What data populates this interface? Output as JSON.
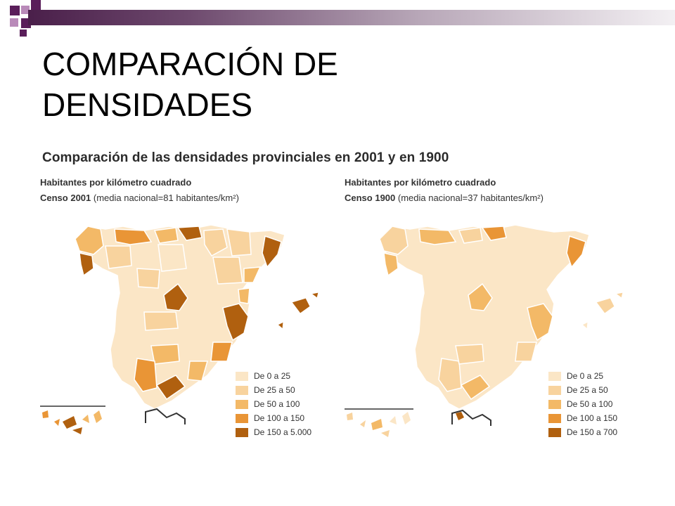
{
  "slide": {
    "title_line1": "COMPARACIÓN DE",
    "title_line2": "DENSIDADES"
  },
  "figure": {
    "title": "Comparación de las densidades provinciales en 2001 y en 1900"
  },
  "maps": [
    {
      "id": "2001",
      "subtitle": "Habitantes por kilómetro cuadrado",
      "census_bold": "Censo 2001",
      "census_rest": " (media nacional=81 habitantes/km²)",
      "legend": [
        {
          "label": "De 0 a 25",
          "color": "#fbe6c6"
        },
        {
          "label": "De 25 a 50",
          "color": "#f8d39e"
        },
        {
          "label": "De 50 a 100",
          "color": "#f3b967"
        },
        {
          "label": "De 100 a 150",
          "color": "#e99536"
        },
        {
          "label": "De 150 a 5.000",
          "color": "#b0600f"
        }
      ]
    },
    {
      "id": "1900",
      "subtitle": "Habitantes por kilómetro cuadrado",
      "census_bold": "Censo 1900",
      "census_rest": " (media nacional=37 habitantes/km²)",
      "legend": [
        {
          "label": "De 0 a 25",
          "color": "#fbe6c6"
        },
        {
          "label": "De 25 a 50",
          "color": "#f8d39e"
        },
        {
          "label": "De 50 a 100",
          "color": "#f3b967"
        },
        {
          "label": "De 100 a 150",
          "color": "#e99536"
        },
        {
          "label": "De 150 a 700",
          "color": "#b0600f"
        }
      ]
    }
  ],
  "colors": {
    "c0": "#fbe6c6",
    "c1": "#f8d39e",
    "c2": "#f3b967",
    "c3": "#e99536",
    "c4": "#b0600f",
    "accent_dark": "#5a1e5a",
    "accent_light": "#b98ab9"
  }
}
